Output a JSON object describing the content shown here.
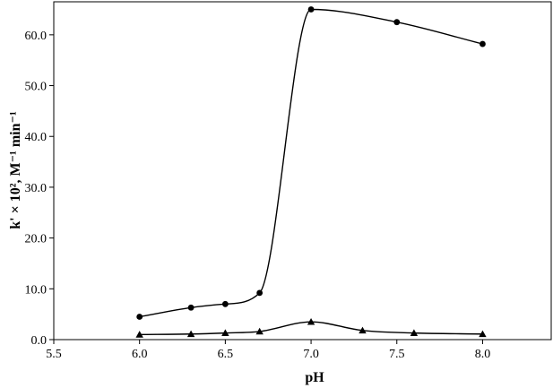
{
  "chart_data": {
    "type": "line",
    "title": "",
    "xlabel": "pH",
    "ylabel": "k' × 10², M⁻¹ min⁻¹",
    "xlim": [
      5.5,
      8.4
    ],
    "ylim": [
      0,
      66.5
    ],
    "x_ticks": [
      5.5,
      6.0,
      6.5,
      7.0,
      7.5,
      8.0
    ],
    "x_tick_labels": [
      "5.5",
      "6.0",
      "6.5",
      "7.0",
      "7.5",
      "8.0"
    ],
    "y_ticks": [
      0,
      10,
      20,
      30,
      40,
      50,
      60
    ],
    "y_tick_labels": [
      "0.0",
      "10.0",
      "20.0",
      "30.0",
      "40.0",
      "50.0",
      "60.0"
    ],
    "grid": false,
    "legend": "none",
    "series": [
      {
        "marker": "circle",
        "color": "#000000",
        "x": [
          6.0,
          6.3,
          6.5,
          6.7,
          7.0,
          7.5,
          8.0
        ],
        "y": [
          4.5,
          6.3,
          7.0,
          9.2,
          65.0,
          62.5,
          58.2
        ]
      },
      {
        "marker": "triangle",
        "color": "#000000",
        "x": [
          6.0,
          6.3,
          6.5,
          6.7,
          7.0,
          7.3,
          7.6,
          8.0
        ],
        "y": [
          1.0,
          1.1,
          1.3,
          1.6,
          3.5,
          1.8,
          1.3,
          1.1
        ]
      }
    ]
  }
}
